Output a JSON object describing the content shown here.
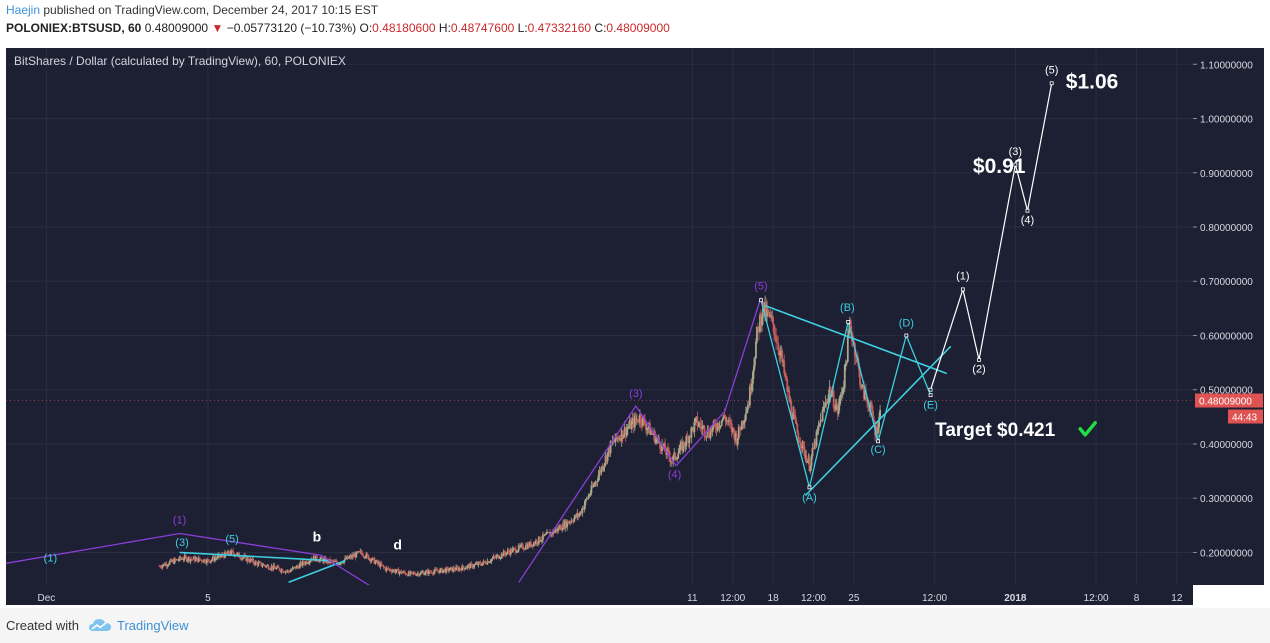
{
  "header": {
    "author": "Haejin",
    "published": "published on TradingView.com, December 24, 2017 10:15 EST",
    "symbol": "POLONIEX:BTSUSD, 60",
    "last": "0.48009000",
    "change_arrow": "▼",
    "change": "−0.05773120 (−10.73%)",
    "o_label": "O:",
    "o_value": "0.48180600",
    "h_label": "H:",
    "h_value": "0.48747600",
    "l_label": "L:",
    "l_value": "0.47332160",
    "c_label": "C:",
    "c_value": "0.48009000"
  },
  "footer": {
    "created_with": "Created with",
    "brand": "TradingView",
    "logo_icon": "tradingview-cloud-icon"
  },
  "chart_data": {
    "type": "candlestick",
    "title": "BitShares / Dollar (calculated by TradingView), 60, POLONIEX",
    "colors": {
      "background": "#1d1f33",
      "grid": "#2a2d42",
      "up": "#a9a98a",
      "down": "#c85a5a",
      "cyan": "#3ecfe0",
      "purple": "#8a3fd8",
      "white": "#ffffff",
      "price_tag": "#e05353",
      "check": "#22dd44"
    },
    "y_axis": {
      "range": [
        0.14,
        1.13
      ],
      "ticks": [
        "0.20000000",
        "0.30000000",
        "0.40000000",
        "0.50000000",
        "0.60000000",
        "0.70000000",
        "0.80000000",
        "0.90000000",
        "1.00000000",
        "1.10000000"
      ],
      "tick_values": [
        0.2,
        0.3,
        0.4,
        0.5,
        0.6,
        0.7,
        0.8,
        0.9,
        1.0,
        1.1
      ],
      "current_price": 0.48009,
      "current_price_label": "0.48009000",
      "countdown_label": "44:43"
    },
    "x_axis": {
      "domain_days": [
        -2.5,
        12.2
      ],
      "ticks": [
        {
          "label": "Dec",
          "day": -2
        },
        {
          "label": "5",
          "day": 0
        },
        {
          "label": "11",
          "day": 6
        },
        {
          "label": "12:00",
          "day": 6.5
        },
        {
          "label": "18",
          "day": 7
        },
        {
          "label": "12:00",
          "day": 7.5
        },
        {
          "label": "25",
          "day": 8
        },
        {
          "label": "12:00",
          "day": 9
        },
        {
          "label": "2018",
          "day": 10
        },
        {
          "label": "12:00",
          "day": 11
        },
        {
          "label": "8",
          "day": 11.5
        },
        {
          "label": "12",
          "day": 12
        }
      ]
    },
    "price_path": [
      [
        -0.6,
        0.175
      ],
      [
        -0.3,
        0.19
      ],
      [
        0,
        0.185
      ],
      [
        0.3,
        0.2
      ],
      [
        0.6,
        0.18
      ],
      [
        1.0,
        0.165
      ],
      [
        1.3,
        0.19
      ],
      [
        1.6,
        0.18
      ],
      [
        1.9,
        0.2
      ],
      [
        2.2,
        0.17
      ],
      [
        2.5,
        0.16
      ],
      [
        2.8,
        0.165
      ],
      [
        3.1,
        0.17
      ],
      [
        3.4,
        0.18
      ],
      [
        3.7,
        0.2
      ],
      [
        4.0,
        0.215
      ],
      [
        4.3,
        0.24
      ],
      [
        4.6,
        0.27
      ],
      [
        4.8,
        0.33
      ],
      [
        5.0,
        0.4
      ],
      [
        5.2,
        0.43
      ],
      [
        5.35,
        0.45
      ],
      [
        5.55,
        0.41
      ],
      [
        5.75,
        0.37
      ],
      [
        5.9,
        0.4
      ],
      [
        6.05,
        0.44
      ],
      [
        6.2,
        0.42
      ],
      [
        6.4,
        0.45
      ],
      [
        6.55,
        0.41
      ],
      [
        6.7,
        0.48
      ],
      [
        6.8,
        0.6
      ],
      [
        6.87,
        0.65
      ],
      [
        7.0,
        0.62
      ],
      [
        7.1,
        0.56
      ],
      [
        7.2,
        0.48
      ],
      [
        7.3,
        0.42
      ],
      [
        7.45,
        0.36
      ],
      [
        7.6,
        0.45
      ],
      [
        7.7,
        0.5
      ],
      [
        7.8,
        0.46
      ],
      [
        7.88,
        0.52
      ],
      [
        7.95,
        0.62
      ],
      [
        8.02,
        0.57
      ],
      [
        8.1,
        0.5
      ],
      [
        8.2,
        0.47
      ],
      [
        8.27,
        0.42
      ],
      [
        8.33,
        0.46
      ]
    ],
    "annotations": {
      "cyan_lines": [
        [
          [
            -0.35,
            0.2
          ],
          [
            1.5,
            0.185
          ]
        ],
        [
          [
            1.0,
            0.145
          ],
          [
            1.7,
            0.185
          ]
        ],
        [
          [
            6.9,
            0.655
          ],
          [
            9.15,
            0.53
          ]
        ],
        [
          [
            7.4,
            0.305
          ],
          [
            9.2,
            0.58
          ]
        ]
      ],
      "cyan_wave": [
        [
          6.85,
          0.665
        ],
        [
          7.45,
          0.32
        ],
        [
          7.93,
          0.625
        ],
        [
          8.3,
          0.405
        ],
        [
          8.65,
          0.6
        ],
        [
          8.95,
          0.49
        ]
      ],
      "purple_wave": [
        [
          -2.5,
          0.18
        ],
        [
          -0.35,
          0.235
        ],
        [
          1.4,
          0.195
        ],
        [
          2.1,
          0.13
        ]
      ],
      "purple_wave_upper": [
        [
          3.85,
          0.145
        ],
        [
          5.3,
          0.47
        ],
        [
          5.8,
          0.36
        ],
        [
          6.4,
          0.46
        ],
        [
          6.85,
          0.67
        ]
      ],
      "white_wave": [
        [
          8.95,
          0.5
        ],
        [
          9.35,
          0.685
        ],
        [
          9.55,
          0.555
        ],
        [
          10.0,
          0.915
        ],
        [
          10.15,
          0.83
        ],
        [
          10.45,
          1.065
        ]
      ],
      "labels": [
        {
          "text": "(1)",
          "day": -1.95,
          "price": 0.183,
          "color": "cyan"
        },
        {
          "text": "(1)",
          "day": -0.35,
          "price": 0.253,
          "color": "purple"
        },
        {
          "text": "(3)",
          "day": -0.32,
          "price": 0.212,
          "color": "cyan"
        },
        {
          "text": "(5)",
          "day": 0.3,
          "price": 0.218,
          "color": "cyan"
        },
        {
          "text": "b",
          "day": 1.35,
          "price": 0.22,
          "color": "white",
          "bold": true
        },
        {
          "text": "d",
          "day": 2.35,
          "price": 0.205,
          "color": "white",
          "bold": true
        },
        {
          "text": "(3)",
          "day": 5.3,
          "price": 0.487,
          "color": "purple"
        },
        {
          "text": "(4)",
          "day": 5.78,
          "price": 0.337,
          "color": "purple"
        },
        {
          "text": "(5)",
          "day": 6.85,
          "price": 0.685,
          "color": "purple"
        },
        {
          "text": "(B)",
          "day": 7.92,
          "price": 0.645,
          "color": "cyan"
        },
        {
          "text": "(A)",
          "day": 7.45,
          "price": 0.295,
          "color": "cyan"
        },
        {
          "text": "(C)",
          "day": 8.3,
          "price": 0.383,
          "color": "cyan"
        },
        {
          "text": "(D)",
          "day": 8.65,
          "price": 0.617,
          "color": "cyan"
        },
        {
          "text": "(E)",
          "day": 8.95,
          "price": 0.465,
          "color": "cyan"
        },
        {
          "text": "(1)",
          "day": 9.35,
          "price": 0.703,
          "color": "white"
        },
        {
          "text": "(2)",
          "day": 9.55,
          "price": 0.532,
          "color": "white"
        },
        {
          "text": "(3)",
          "day": 10.0,
          "price": 0.933,
          "color": "white"
        },
        {
          "text": "(4)",
          "day": 10.15,
          "price": 0.806,
          "color": "white"
        },
        {
          "text": "(5)",
          "day": 10.45,
          "price": 1.083,
          "color": "white"
        }
      ],
      "big_labels": [
        {
          "text": "$1.06",
          "day": 10.95,
          "price": 1.055
        },
        {
          "text": "$0.91",
          "day": 9.8,
          "price": 0.9
        }
      ],
      "target_label": {
        "text": "Target $0.421",
        "day": 9.75,
        "price": 0.415
      }
    }
  }
}
